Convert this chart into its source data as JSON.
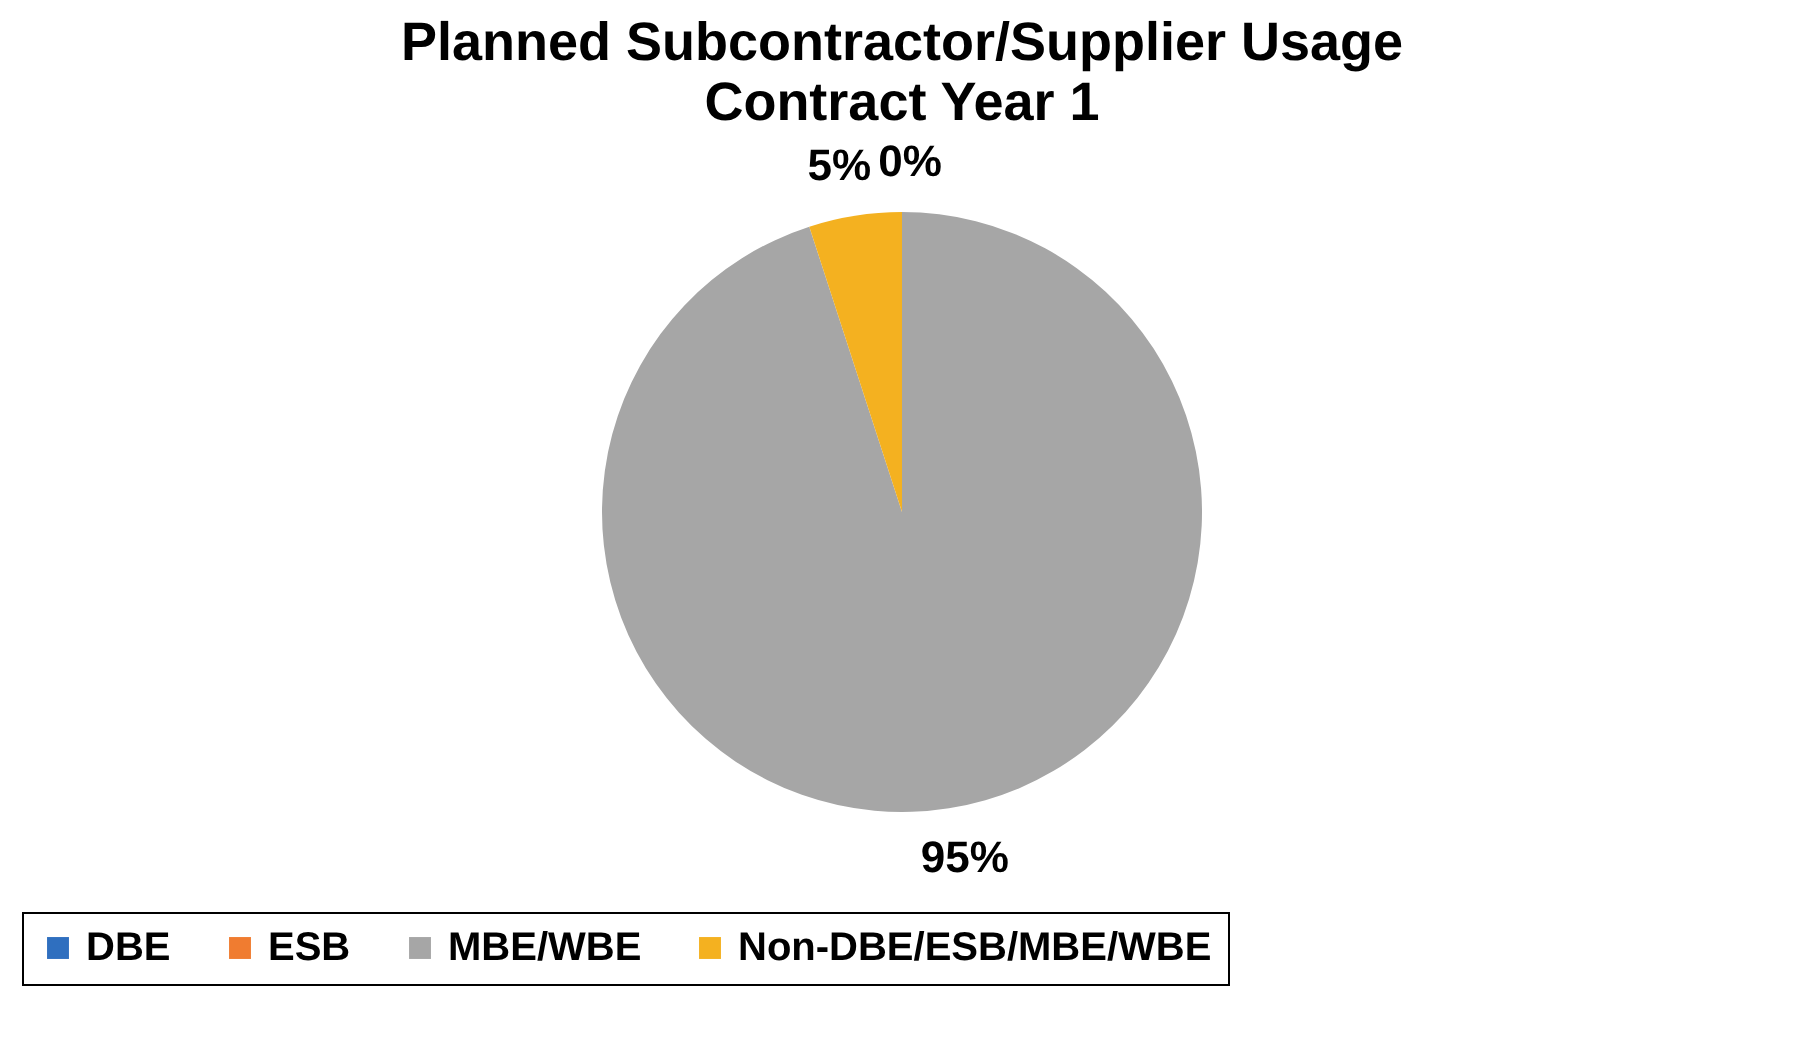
{
  "chart_data": {
    "type": "pie",
    "title": "Planned Subcontractor/Supplier Usage",
    "subtitle": "Contract Year 1",
    "categories": [
      "DBE",
      "ESB",
      "MBE/WBE",
      "Non-DBE/ESB/MBE/WBE"
    ],
    "values": [
      0,
      0,
      95,
      5
    ],
    "colors": [
      "#2f6fbf",
      "#f07c30",
      "#a6a6a6",
      "#f4b120"
    ],
    "value_labels": [
      "0%",
      null,
      "95%",
      "5%"
    ],
    "legend": "bottom"
  }
}
